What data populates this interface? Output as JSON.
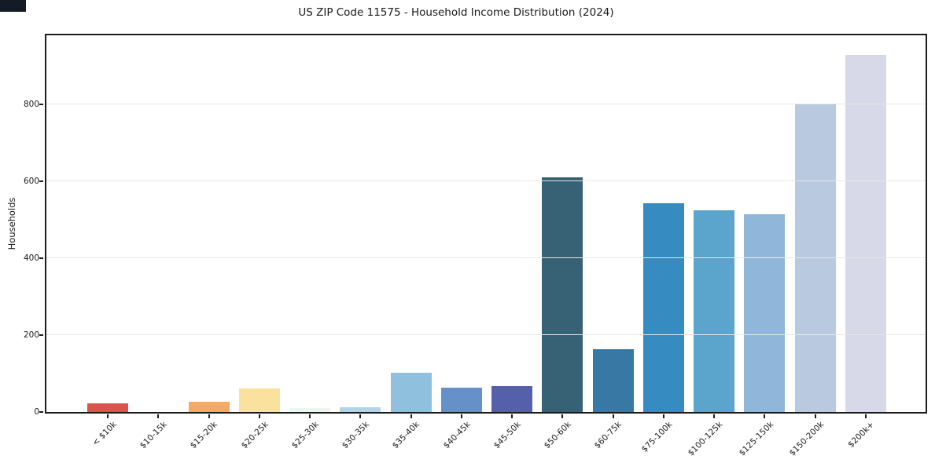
{
  "chart_data": {
    "type": "bar",
    "title": "US ZIP Code 11575 - Household Income Distribution (2024)",
    "xlabel": "",
    "ylabel": "Households",
    "categories": [
      "< $10k",
      "$10-15k",
      "$15-20k",
      "$20-25k",
      "$25-30k",
      "$30-35k",
      "$35-40k",
      "$40-45k",
      "$45-50k",
      "$50-60k",
      "$60-75k",
      "$75-100k",
      "$100-125k",
      "$125-150k",
      "$150-200k",
      "$200k+"
    ],
    "values": [
      22,
      0,
      27,
      62,
      10,
      13,
      103,
      63,
      68,
      610,
      163,
      543,
      525,
      513,
      800,
      928
    ],
    "bar_colors": [
      "#d9544d",
      "#ef8250",
      "#f5a965",
      "#fbe19e",
      "#edf6ef",
      "#b0d5e8",
      "#8fc0dd",
      "#6590c8",
      "#5560ab",
      "#376175",
      "#3779a4",
      "#368bc1",
      "#5ba4cb",
      "#90b7da",
      "#b9c9e0",
      "#d8d9e8"
    ],
    "yticks": [
      0,
      200,
      400,
      600,
      800
    ],
    "ylim": [
      0,
      979
    ],
    "grid": true,
    "legend_position": "none",
    "axis_color": "#1c1c1c",
    "gridline_color": "#e7e7e7"
  }
}
